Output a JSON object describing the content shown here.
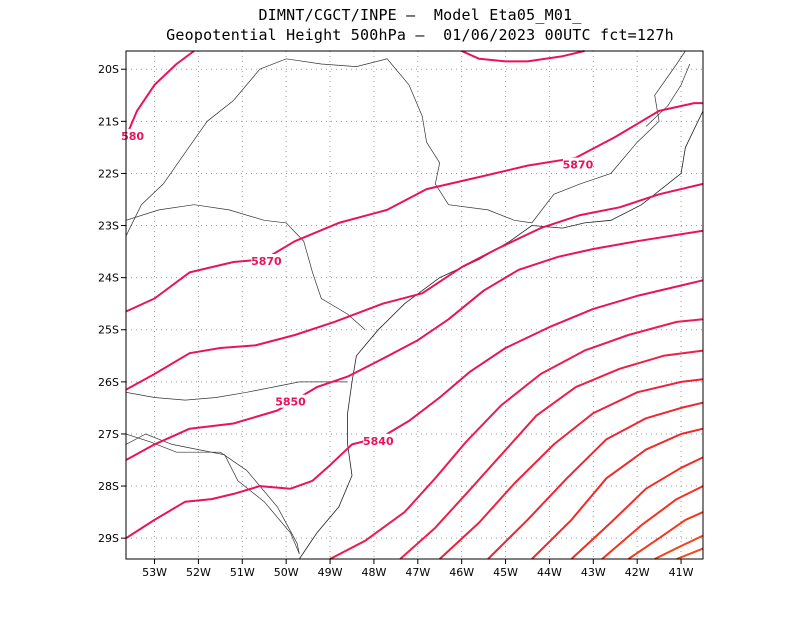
{
  "header": {
    "line1": "DIMNT/CGCT/INPE –  Model Eta05_M01_",
    "line2": "Geopotential Height 500hPa –  01/06/2023 00UTC fct=127h"
  },
  "map": {
    "lon_range": [
      -53.65,
      -40.5
    ],
    "lat_range": [
      -29.4,
      -19.65
    ],
    "lon_ticks": [
      {
        "value": -53,
        "label": "53W"
      },
      {
        "value": -52,
        "label": "52W"
      },
      {
        "value": -51,
        "label": "51W"
      },
      {
        "value": -50,
        "label": "50W"
      },
      {
        "value": -49,
        "label": "49W"
      },
      {
        "value": -48,
        "label": "48W"
      },
      {
        "value": -47,
        "label": "47W"
      },
      {
        "value": -46,
        "label": "46W"
      },
      {
        "value": -45,
        "label": "45W"
      },
      {
        "value": -44,
        "label": "44W"
      },
      {
        "value": -43,
        "label": "43W"
      },
      {
        "value": -42,
        "label": "42W"
      },
      {
        "value": -41,
        "label": "41W"
      }
    ],
    "lat_ticks": [
      {
        "value": -20,
        "label": "20S"
      },
      {
        "value": -21,
        "label": "21S"
      },
      {
        "value": -22,
        "label": "22S"
      },
      {
        "value": -23,
        "label": "23S"
      },
      {
        "value": -24,
        "label": "24S"
      },
      {
        "value": -25,
        "label": "25S"
      },
      {
        "value": -26,
        "label": "26S"
      },
      {
        "value": -27,
        "label": "27S"
      },
      {
        "value": -28,
        "label": "28S"
      },
      {
        "value": -29,
        "label": "29S"
      }
    ],
    "grid": "dotted",
    "contour_labels": [
      {
        "text": "580",
        "lon": -53.5,
        "lat": -21.3,
        "color": "#e8145a"
      },
      {
        "text": "5870",
        "lon": -50.45,
        "lat": -23.7,
        "color": "#e8145a"
      },
      {
        "text": "5870",
        "lon": -43.35,
        "lat": -21.85,
        "color": "#e8145a"
      },
      {
        "text": "5850",
        "lon": -49.9,
        "lat": -26.4,
        "color": "#e8145a"
      },
      {
        "text": "5840",
        "lon": -47.9,
        "lat": -27.15,
        "color": "#e8145a"
      }
    ],
    "contours": [
      {
        "color": "#e8145a",
        "points": [
          [
            -53.65,
            -21.3
          ],
          [
            -53.4,
            -20.8
          ],
          [
            -53.0,
            -20.3
          ],
          [
            -52.5,
            -19.9
          ],
          [
            -52.1,
            -19.65
          ]
        ]
      },
      {
        "color": "#e8145a",
        "points": [
          [
            -46.0,
            -19.65
          ],
          [
            -45.6,
            -19.8
          ],
          [
            -45.0,
            -19.85
          ],
          [
            -44.5,
            -19.85
          ],
          [
            -43.7,
            -19.75
          ],
          [
            -43.2,
            -19.65
          ]
        ]
      },
      {
        "color": "#e8145a",
        "points": [
          [
            -53.65,
            -24.65
          ],
          [
            -53.0,
            -24.4
          ],
          [
            -52.2,
            -23.9
          ],
          [
            -51.2,
            -23.7
          ],
          [
            -50.5,
            -23.65
          ],
          [
            -49.8,
            -23.3
          ],
          [
            -48.8,
            -22.95
          ],
          [
            -47.7,
            -22.7
          ],
          [
            -46.8,
            -22.3
          ],
          [
            -45.5,
            -22.05
          ],
          [
            -44.5,
            -21.85
          ],
          [
            -43.4,
            -21.7
          ],
          [
            -42.5,
            -21.3
          ],
          [
            -41.5,
            -20.8
          ],
          [
            -40.7,
            -20.65
          ],
          [
            -40.5,
            -20.65
          ]
        ]
      },
      {
        "color": "#e8145a",
        "points": [
          [
            -53.65,
            -26.15
          ],
          [
            -53.0,
            -25.85
          ],
          [
            -52.2,
            -25.45
          ],
          [
            -51.5,
            -25.35
          ],
          [
            -50.7,
            -25.3
          ],
          [
            -49.8,
            -25.1
          ],
          [
            -48.9,
            -24.85
          ],
          [
            -47.8,
            -24.5
          ],
          [
            -46.9,
            -24.3
          ],
          [
            -46.0,
            -23.8
          ],
          [
            -45.2,
            -23.45
          ],
          [
            -44.2,
            -23.05
          ],
          [
            -43.3,
            -22.8
          ],
          [
            -42.4,
            -22.65
          ],
          [
            -41.5,
            -22.4
          ],
          [
            -40.5,
            -22.2
          ]
        ]
      },
      {
        "color": "#e8145a",
        "points": [
          [
            -53.65,
            -27.5
          ],
          [
            -53.0,
            -27.2
          ],
          [
            -52.2,
            -26.9
          ],
          [
            -51.2,
            -26.8
          ],
          [
            -50.2,
            -26.55
          ],
          [
            -49.3,
            -26.1
          ],
          [
            -48.6,
            -25.9
          ],
          [
            -47.9,
            -25.6
          ],
          [
            -47.0,
            -25.2
          ],
          [
            -46.3,
            -24.8
          ],
          [
            -45.5,
            -24.25
          ],
          [
            -44.7,
            -23.85
          ],
          [
            -43.8,
            -23.6
          ],
          [
            -43.0,
            -23.45
          ],
          [
            -42.0,
            -23.3
          ],
          [
            -40.5,
            -23.1
          ]
        ]
      },
      {
        "color": "#e8145a",
        "points": [
          [
            -53.65,
            -29.0
          ],
          [
            -53.0,
            -28.65
          ],
          [
            -52.3,
            -28.3
          ],
          [
            -51.7,
            -28.25
          ],
          [
            -51.2,
            -28.15
          ],
          [
            -50.6,
            -28.0
          ],
          [
            -49.9,
            -28.05
          ],
          [
            -49.4,
            -27.9
          ],
          [
            -49.0,
            -27.6
          ],
          [
            -48.5,
            -27.2
          ],
          [
            -47.8,
            -27.05
          ],
          [
            -47.2,
            -26.75
          ],
          [
            -46.5,
            -26.3
          ],
          [
            -45.8,
            -25.8
          ],
          [
            -45.0,
            -25.35
          ],
          [
            -44.0,
            -24.95
          ],
          [
            -43.0,
            -24.6
          ],
          [
            -42.0,
            -24.35
          ],
          [
            -41.0,
            -24.15
          ],
          [
            -40.5,
            -24.05
          ]
        ]
      },
      {
        "color": "#ec1c52",
        "points": [
          [
            -49.0,
            -29.4
          ],
          [
            -48.2,
            -29.05
          ],
          [
            -47.3,
            -28.5
          ],
          [
            -46.6,
            -27.85
          ],
          [
            -45.9,
            -27.15
          ],
          [
            -45.1,
            -26.45
          ],
          [
            -44.2,
            -25.85
          ],
          [
            -43.2,
            -25.4
          ],
          [
            -42.2,
            -25.1
          ],
          [
            -41.1,
            -24.85
          ],
          [
            -40.5,
            -24.8
          ]
        ]
      },
      {
        "color": "#ee1e46",
        "points": [
          [
            -47.4,
            -29.4
          ],
          [
            -46.6,
            -28.8
          ],
          [
            -45.9,
            -28.15
          ],
          [
            -45.1,
            -27.4
          ],
          [
            -44.3,
            -26.65
          ],
          [
            -43.4,
            -26.1
          ],
          [
            -42.4,
            -25.75
          ],
          [
            -41.4,
            -25.5
          ],
          [
            -40.5,
            -25.4
          ]
        ]
      },
      {
        "color": "#f0203c",
        "points": [
          [
            -46.5,
            -29.4
          ],
          [
            -45.6,
            -28.7
          ],
          [
            -44.8,
            -27.95
          ],
          [
            -43.9,
            -27.2
          ],
          [
            -43.0,
            -26.6
          ],
          [
            -42.0,
            -26.2
          ],
          [
            -41.0,
            -26.0
          ],
          [
            -40.5,
            -25.95
          ]
        ]
      },
      {
        "color": "#f02432",
        "points": [
          [
            -45.4,
            -29.4
          ],
          [
            -44.5,
            -28.65
          ],
          [
            -43.6,
            -27.85
          ],
          [
            -42.7,
            -27.1
          ],
          [
            -41.8,
            -26.7
          ],
          [
            -41.0,
            -26.5
          ],
          [
            -40.5,
            -26.4
          ]
        ]
      },
      {
        "color": "#f2282a",
        "points": [
          [
            -44.4,
            -29.4
          ],
          [
            -43.5,
            -28.65
          ],
          [
            -42.7,
            -27.85
          ],
          [
            -41.8,
            -27.3
          ],
          [
            -41.0,
            -27.0
          ],
          [
            -40.5,
            -26.9
          ]
        ]
      },
      {
        "color": "#f22c24",
        "points": [
          [
            -43.5,
            -29.4
          ],
          [
            -42.6,
            -28.7
          ],
          [
            -41.8,
            -28.05
          ],
          [
            -41.0,
            -27.65
          ],
          [
            -40.5,
            -27.45
          ]
        ]
      },
      {
        "color": "#f4321e",
        "points": [
          [
            -42.8,
            -29.4
          ],
          [
            -41.9,
            -28.75
          ],
          [
            -41.1,
            -28.25
          ],
          [
            -40.5,
            -28.0
          ]
        ]
      },
      {
        "color": "#f4381a",
        "points": [
          [
            -42.2,
            -29.4
          ],
          [
            -41.5,
            -29.0
          ],
          [
            -40.9,
            -28.65
          ],
          [
            -40.5,
            -28.5
          ]
        ]
      },
      {
        "color": "#f64016",
        "points": [
          [
            -41.6,
            -29.4
          ],
          [
            -41.0,
            -29.15
          ],
          [
            -40.5,
            -28.95
          ]
        ]
      },
      {
        "color": "#f64a14",
        "points": [
          [
            -41.1,
            -29.4
          ],
          [
            -40.8,
            -29.3
          ],
          [
            -40.5,
            -29.2
          ]
        ]
      }
    ],
    "borders": [
      [
        [
          -53.65,
          -23.2
        ],
        [
          -53.3,
          -22.6
        ],
        [
          -52.8,
          -22.2
        ],
        [
          -52.3,
          -21.6
        ],
        [
          -51.8,
          -21.0
        ],
        [
          -51.2,
          -20.6
        ],
        [
          -50.6,
          -20.0
        ],
        [
          -50.0,
          -19.8
        ],
        [
          -49.2,
          -19.9
        ],
        [
          -48.4,
          -19.95
        ],
        [
          -47.7,
          -19.8
        ],
        [
          -47.2,
          -20.3
        ],
        [
          -46.9,
          -20.9
        ],
        [
          -46.8,
          -21.4
        ],
        [
          -46.5,
          -21.8
        ],
        [
          -46.6,
          -22.2
        ],
        [
          -46.3,
          -22.6
        ],
        [
          -45.4,
          -22.7
        ],
        [
          -44.8,
          -22.9
        ],
        [
          -44.4,
          -22.95
        ]
      ],
      [
        [
          -53.65,
          -22.9
        ],
        [
          -52.9,
          -22.7
        ],
        [
          -52.1,
          -22.6
        ],
        [
          -51.3,
          -22.7
        ],
        [
          -50.5,
          -22.9
        ],
        [
          -50.0,
          -22.95
        ],
        [
          -49.6,
          -23.3
        ],
        [
          -49.4,
          -23.9
        ],
        [
          -49.2,
          -24.4
        ],
        [
          -48.6,
          -24.7
        ],
        [
          -48.2,
          -25.0
        ]
      ],
      [
        [
          -53.65,
          -26.2
        ],
        [
          -53.0,
          -26.3
        ],
        [
          -52.3,
          -26.35
        ],
        [
          -51.6,
          -26.3
        ],
        [
          -50.9,
          -26.2
        ],
        [
          -50.3,
          -26.1
        ],
        [
          -49.7,
          -26.0
        ],
        [
          -49.1,
          -26.0
        ],
        [
          -48.6,
          -26.0
        ]
      ],
      [
        [
          -53.65,
          -27.2
        ],
        [
          -53.2,
          -27.0
        ],
        [
          -52.6,
          -27.2
        ],
        [
          -52.0,
          -27.3
        ],
        [
          -51.4,
          -27.4
        ],
        [
          -51.1,
          -27.9
        ],
        [
          -50.5,
          -28.3
        ],
        [
          -49.9,
          -28.9
        ],
        [
          -49.7,
          -29.3
        ]
      ],
      [
        [
          -53.65,
          -27.0
        ],
        [
          -53.1,
          -27.15
        ],
        [
          -52.5,
          -27.35
        ],
        [
          -51.5,
          -27.35
        ],
        [
          -50.9,
          -27.7
        ],
        [
          -50.2,
          -28.4
        ],
        [
          -49.75,
          -29.1
        ],
        [
          -49.7,
          -29.3
        ]
      ],
      [
        [
          -44.4,
          -22.95
        ],
        [
          -43.9,
          -22.4
        ],
        [
          -43.3,
          -22.2
        ],
        [
          -42.6,
          -22.0
        ],
        [
          -42.0,
          -21.4
        ],
        [
          -41.5,
          -21.0
        ],
        [
          -41.6,
          -20.5
        ],
        [
          -41.1,
          -19.9
        ],
        [
          -40.9,
          -19.65
        ]
      ],
      [
        [
          -41.8,
          -21.1
        ],
        [
          -41.3,
          -20.7
        ],
        [
          -41.0,
          -20.3
        ],
        [
          -40.8,
          -19.9
        ]
      ]
    ],
    "coast": [
      [
        [
          -40.5,
          -20.8
        ],
        [
          -40.9,
          -21.5
        ],
        [
          -41.0,
          -22.0
        ],
        [
          -41.9,
          -22.6
        ],
        [
          -42.6,
          -22.9
        ],
        [
          -43.2,
          -22.95
        ],
        [
          -43.7,
          -23.05
        ],
        [
          -44.4,
          -23.0
        ],
        [
          -44.9,
          -23.3
        ],
        [
          -45.6,
          -23.65
        ],
        [
          -46.5,
          -24.0
        ],
        [
          -47.3,
          -24.5
        ],
        [
          -47.9,
          -25.0
        ],
        [
          -48.4,
          -25.5
        ],
        [
          -48.5,
          -26.0
        ],
        [
          -48.6,
          -26.6
        ],
        [
          -48.6,
          -27.2
        ],
        [
          -48.5,
          -27.8
        ],
        [
          -48.8,
          -28.4
        ],
        [
          -49.3,
          -28.9
        ],
        [
          -49.7,
          -29.4
        ]
      ]
    ]
  }
}
